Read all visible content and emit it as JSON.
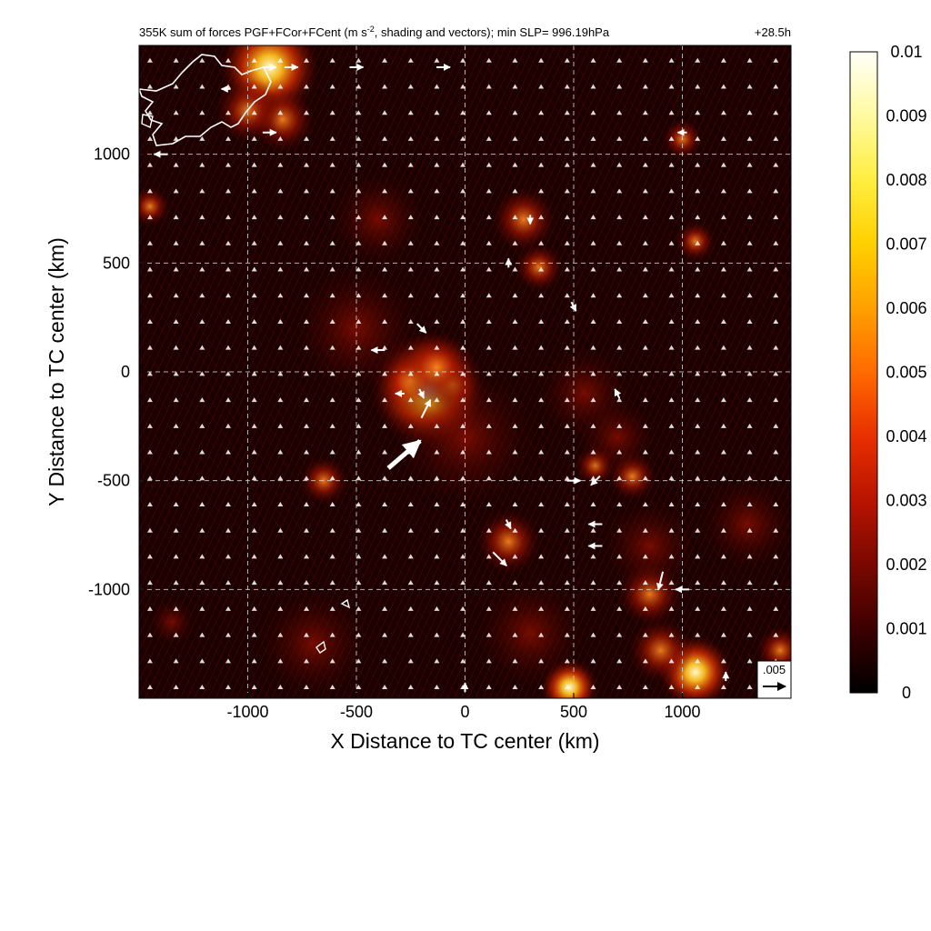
{
  "chart_data": {
    "type": "heatmap",
    "title": "355K sum of forces PGF+FCor+FCent (m s",
    "title_sup": "-2",
    "title_rest": ", shading and vectors); min SLP= 996.19hPa",
    "forecast_hour": "+28.5h",
    "xlabel": "X Distance to TC center (km)",
    "ylabel": "Y Distance to TC center (km)",
    "xlim": [
      -1500,
      1500
    ],
    "ylim": [
      -1500,
      1500
    ],
    "xticks": [
      -1000,
      -500,
      0,
      500,
      1000
    ],
    "yticks": [
      -1000,
      -500,
      0,
      500,
      1000
    ],
    "grid": true,
    "colorbar": {
      "min": 0,
      "max": 0.01,
      "ticks": [
        "0",
        "0.001",
        "0.002",
        "0.003",
        "0.004",
        "0.005",
        "0.006",
        "0.007",
        "0.008",
        "0.009",
        "0.01"
      ],
      "colors": [
        "#000000",
        "#3c0000",
        "#7a0800",
        "#b81400",
        "#e83000",
        "#ff6a00",
        "#ffa000",
        "#ffd000",
        "#ffee40",
        "#fffaa0",
        "#fffff8"
      ]
    },
    "reference_vector": {
      "label": ".005",
      "value": 0.005
    },
    "vectors": [
      {
        "x": -900,
        "y": 1400,
        "u": 0.003,
        "v": 0
      },
      {
        "x": -800,
        "y": 1400,
        "u": 0.003,
        "v": 0
      },
      {
        "x": -500,
        "y": 1400,
        "u": 0.003,
        "v": 0
      },
      {
        "x": -100,
        "y": 1400,
        "u": 0.003,
        "v": 0
      },
      {
        "x": -1100,
        "y": 1300,
        "u": -0.002,
        "v": 0
      },
      {
        "x": -900,
        "y": 1100,
        "u": 0.003,
        "v": 0
      },
      {
        "x": -1400,
        "y": 1000,
        "u": -0.003,
        "v": 0
      },
      {
        "x": 1000,
        "y": 1100,
        "u": -0.002,
        "v": 0
      },
      {
        "x": 300,
        "y": 700,
        "u": 0,
        "v": -0.002
      },
      {
        "x": 500,
        "y": 300,
        "u": 0.001,
        "v": -0.002
      },
      {
        "x": -200,
        "y": 200,
        "u": 0.002,
        "v": -0.002
      },
      {
        "x": -400,
        "y": 100,
        "u": -0.003,
        "v": 0
      },
      {
        "x": -300,
        "y": -100,
        "u": -0.002,
        "v": 0
      },
      {
        "x": -200,
        "y": -100,
        "u": 0.001,
        "v": -0.002
      },
      {
        "x": -180,
        "y": -170,
        "u": 0.002,
        "v": 0.004
      },
      {
        "x": -280,
        "y": -380,
        "u": 0.007,
        "v": 0.006
      },
      {
        "x": 500,
        "y": -500,
        "u": 0.003,
        "v": 0
      },
      {
        "x": 600,
        "y": -500,
        "u": -0.002,
        "v": -0.002
      },
      {
        "x": 600,
        "y": -700,
        "u": -0.003,
        "v": 0
      },
      {
        "x": 600,
        "y": -800,
        "u": -0.003,
        "v": 0
      },
      {
        "x": 200,
        "y": -700,
        "u": 0.001,
        "v": -0.002
      },
      {
        "x": 160,
        "y": -860,
        "u": 0.003,
        "v": -0.003
      },
      {
        "x": 900,
        "y": -960,
        "u": -0.001,
        "v": -0.004
      },
      {
        "x": 1000,
        "y": -1000,
        "u": -0.003,
        "v": 0
      },
      {
        "x": 1200,
        "y": -1400,
        "u": 0,
        "v": 0.002
      },
      {
        "x": 0,
        "y": -1450,
        "u": 0,
        "v": 0.002
      },
      {
        "x": 700,
        "y": -100,
        "u": -0.001,
        "v": 0.002
      },
      {
        "x": 200,
        "y": 500,
        "u": 0,
        "v": 0.002
      }
    ]
  }
}
